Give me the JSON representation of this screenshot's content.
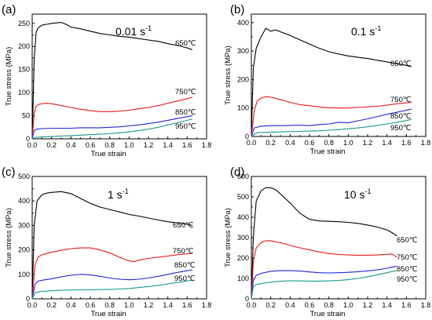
{
  "chart_data": [
    {
      "type": "line",
      "panel_label": "(a)",
      "strain_rate_label": "0.01 s",
      "strain_rate_superscript": "-1",
      "xlabel": "True strain",
      "ylabel": "True stress (MPa)",
      "xlim": [
        0.0,
        1.8
      ],
      "ylim": [
        0,
        270
      ],
      "xticks": [
        "0.0",
        "0.2",
        "0.4",
        "0.6",
        "0.8",
        "1.0",
        "1.2",
        "1.4",
        "1.6",
        "1.8"
      ],
      "yticks": [
        "0",
        "50",
        "100",
        "150",
        "200",
        "250"
      ],
      "yticks_values": [
        0,
        50,
        100,
        150,
        200,
        250
      ],
      "series": [
        {
          "name": "650℃",
          "color": "#000000",
          "x": [
            0,
            0.02,
            0.04,
            0.06,
            0.1,
            0.15,
            0.2,
            0.3,
            0.35,
            0.4,
            0.5,
            0.6,
            0.7,
            0.8,
            0.9,
            1.0,
            1.1,
            1.2,
            1.3,
            1.4,
            1.5,
            1.6,
            1.65
          ],
          "y": [
            0,
            170,
            230,
            240,
            246,
            248,
            250,
            252,
            248,
            242,
            238,
            233,
            228,
            225,
            222,
            220,
            217,
            214,
            211,
            206,
            202,
            197,
            193
          ]
        },
        {
          "name": "750℃",
          "color": "#e8191c",
          "x": [
            0,
            0.02,
            0.04,
            0.06,
            0.1,
            0.15,
            0.2,
            0.3,
            0.4,
            0.5,
            0.6,
            0.7,
            0.8,
            0.9,
            1.0,
            1.1,
            1.2,
            1.3,
            1.4,
            1.5,
            1.6,
            1.65
          ],
          "y": [
            0,
            55,
            70,
            74,
            76,
            77,
            76,
            72,
            68,
            64,
            61,
            59,
            59,
            60,
            62,
            65,
            68,
            72,
            77,
            82,
            87,
            90
          ]
        },
        {
          "name": "850℃",
          "color": "#2323d8",
          "x": [
            0,
            0.02,
            0.05,
            0.1,
            0.2,
            0.3,
            0.4,
            0.5,
            0.6,
            0.7,
            0.8,
            0.9,
            1.0,
            1.1,
            1.2,
            1.3,
            1.4,
            1.5,
            1.6,
            1.65
          ],
          "y": [
            0,
            18,
            21,
            22,
            23,
            23,
            23,
            24,
            24,
            24,
            25,
            26,
            28,
            30,
            33,
            36,
            40,
            44,
            48,
            50
          ]
        },
        {
          "name": "950℃",
          "color": "#1a9a8e",
          "x": [
            0,
            0.03,
            0.1,
            0.2,
            0.3,
            0.4,
            0.5,
            0.6,
            0.7,
            0.8,
            0.9,
            1.0,
            1.1,
            1.2,
            1.3,
            1.4,
            1.5,
            1.6,
            1.65
          ],
          "y": [
            0,
            3,
            4,
            5,
            6,
            7,
            8,
            9,
            10,
            11,
            13,
            15,
            18,
            21,
            25,
            30,
            35,
            40,
            43
          ]
        }
      ]
    },
    {
      "type": "line",
      "panel_label": "(b)",
      "strain_rate_label": "0.1 s",
      "strain_rate_superscript": "-1",
      "xlabel": "True strain",
      "ylabel": "True stress (MPa)",
      "xlim": [
        0.0,
        1.8
      ],
      "ylim": [
        0,
        430
      ],
      "xticks": [
        "0.0",
        "0.2",
        "0.4",
        "0.6",
        "0.8",
        "1.0",
        "1.2",
        "1.4",
        "1.6",
        "1.8"
      ],
      "yticks": [
        "0",
        "100",
        "200",
        "300",
        "400"
      ],
      "yticks_values": [
        0,
        100,
        200,
        300,
        400
      ],
      "series": [
        {
          "name": "650℃",
          "color": "#000000",
          "x": [
            0,
            0.02,
            0.05,
            0.1,
            0.15,
            0.2,
            0.25,
            0.3,
            0.4,
            0.5,
            0.6,
            0.7,
            0.8,
            0.9,
            1.0,
            1.1,
            1.2,
            1.3,
            1.4,
            1.5,
            1.6,
            1.65
          ],
          "y": [
            0,
            240,
            310,
            350,
            380,
            370,
            375,
            368,
            355,
            340,
            325,
            310,
            298,
            290,
            283,
            278,
            274,
            268,
            262,
            256,
            250,
            245
          ]
        },
        {
          "name": "750℃",
          "color": "#e8191c",
          "x": [
            0,
            0.03,
            0.06,
            0.1,
            0.15,
            0.2,
            0.3,
            0.4,
            0.5,
            0.6,
            0.7,
            0.8,
            0.9,
            1.0,
            1.1,
            1.2,
            1.3,
            1.4,
            1.5,
            1.6,
            1.65
          ],
          "y": [
            0,
            90,
            125,
            135,
            140,
            138,
            130,
            120,
            112,
            108,
            104,
            101,
            100,
            100,
            102,
            104,
            106,
            110,
            115,
            118,
            120
          ]
        },
        {
          "name": "850℃",
          "color": "#2323d8",
          "x": [
            0,
            0.03,
            0.1,
            0.2,
            0.3,
            0.4,
            0.5,
            0.6,
            0.7,
            0.8,
            0.9,
            1.0,
            1.1,
            1.2,
            1.3,
            1.4,
            1.5,
            1.6,
            1.65
          ],
          "y": [
            0,
            30,
            36,
            38,
            38,
            39,
            40,
            38,
            42,
            44,
            50,
            48,
            55,
            62,
            70,
            78,
            85,
            92,
            96
          ]
        },
        {
          "name": "950℃",
          "color": "#1a9a8e",
          "x": [
            0,
            0.05,
            0.1,
            0.2,
            0.3,
            0.4,
            0.5,
            0.6,
            0.7,
            0.8,
            0.9,
            1.0,
            1.1,
            1.2,
            1.3,
            1.4,
            1.5,
            1.6,
            1.65
          ],
          "y": [
            0,
            12,
            14,
            15,
            16,
            17,
            18,
            19,
            20,
            22,
            24,
            27,
            30,
            34,
            39,
            44,
            50,
            56,
            60
          ]
        }
      ]
    },
    {
      "type": "line",
      "panel_label": "(c)",
      "strain_rate_label": "1 s",
      "strain_rate_superscript": "-1",
      "xlabel": "True strain",
      "ylabel": "True stress (MPa)",
      "xlim": [
        0.0,
        1.8
      ],
      "ylim": [
        0,
        500
      ],
      "xticks": [
        "0.0",
        "0.2",
        "0.4",
        "0.6",
        "0.8",
        "1.0",
        "1.2",
        "1.4",
        "1.6",
        "1.8"
      ],
      "yticks": [
        "0",
        "100",
        "200",
        "300",
        "400",
        "500"
      ],
      "yticks_values": [
        0,
        100,
        200,
        300,
        400,
        500
      ],
      "series": [
        {
          "name": "650℃",
          "color": "#000000",
          "x": [
            0,
            0.02,
            0.05,
            0.1,
            0.15,
            0.2,
            0.3,
            0.4,
            0.5,
            0.6,
            0.7,
            0.8,
            0.9,
            1.0,
            1.1,
            1.2,
            1.3,
            1.4,
            1.5,
            1.6,
            1.65
          ],
          "y": [
            0,
            300,
            400,
            425,
            432,
            435,
            438,
            430,
            410,
            390,
            375,
            365,
            355,
            345,
            338,
            330,
            322,
            315,
            310,
            305,
            300
          ]
        },
        {
          "name": "750℃",
          "color": "#e8191c",
          "x": [
            0,
            0.03,
            0.06,
            0.1,
            0.2,
            0.3,
            0.4,
            0.5,
            0.6,
            0.7,
            0.8,
            0.9,
            1.0,
            1.05,
            1.1,
            1.2,
            1.3,
            1.4,
            1.5,
            1.6,
            1.65
          ],
          "y": [
            0,
            140,
            170,
            180,
            190,
            198,
            205,
            208,
            208,
            200,
            188,
            170,
            155,
            152,
            158,
            165,
            170,
            175,
            180,
            184,
            186
          ]
        },
        {
          "name": "850℃",
          "color": "#2323d8",
          "x": [
            0,
            0.03,
            0.06,
            0.1,
            0.2,
            0.3,
            0.4,
            0.5,
            0.6,
            0.7,
            0.8,
            0.9,
            1.0,
            1.1,
            1.2,
            1.3,
            1.4,
            1.5,
            1.6,
            1.65
          ],
          "y": [
            0,
            60,
            72,
            76,
            82,
            90,
            96,
            100,
            98,
            92,
            85,
            80,
            78,
            80,
            85,
            92,
            100,
            108,
            115,
            118
          ]
        },
        {
          "name": "950℃",
          "color": "#1a9a8e",
          "x": [
            0,
            0.03,
            0.1,
            0.2,
            0.3,
            0.4,
            0.5,
            0.6,
            0.7,
            0.8,
            0.9,
            1.0,
            1.1,
            1.2,
            1.3,
            1.4,
            1.5,
            1.6,
            1.65
          ],
          "y": [
            0,
            25,
            30,
            33,
            35,
            36,
            37,
            37,
            38,
            38,
            40,
            42,
            46,
            50,
            55,
            61,
            67,
            73,
            76
          ]
        }
      ]
    },
    {
      "type": "line",
      "panel_label": "(d)",
      "strain_rate_label": "10 s",
      "strain_rate_superscript": "-1",
      "xlabel": "True strain",
      "ylabel": "True stress (MPa)",
      "xlim": [
        0.0,
        1.8
      ],
      "ylim": [
        0,
        600
      ],
      "xticks": [
        "0.0",
        "0.2",
        "0.4",
        "0.6",
        "0.8",
        "1.0",
        "1.2",
        "1.4",
        "1.6",
        "1.8"
      ],
      "yticks": [
        "0",
        "100",
        "200",
        "300",
        "400",
        "500",
        "600"
      ],
      "yticks_values": [
        0,
        100,
        200,
        300,
        400,
        500,
        600
      ],
      "series": [
        {
          "name": "650℃",
          "color": "#000000",
          "x": [
            0,
            0.02,
            0.05,
            0.1,
            0.15,
            0.2,
            0.25,
            0.3,
            0.4,
            0.5,
            0.6,
            0.7,
            0.8,
            0.9,
            1.0,
            1.1,
            1.2,
            1.3,
            1.4,
            1.45,
            1.5
          ],
          "y": [
            0,
            300,
            480,
            530,
            545,
            545,
            535,
            515,
            470,
            420,
            390,
            382,
            380,
            378,
            375,
            370,
            362,
            352,
            338,
            325,
            310
          ]
        },
        {
          "name": "750℃",
          "color": "#e8191c",
          "x": [
            0,
            0.02,
            0.05,
            0.1,
            0.15,
            0.2,
            0.3,
            0.4,
            0.5,
            0.6,
            0.7,
            0.8,
            0.9,
            1.0,
            1.1,
            1.2,
            1.3,
            1.4,
            1.45,
            1.5
          ],
          "y": [
            0,
            180,
            250,
            275,
            285,
            285,
            275,
            262,
            250,
            240,
            230,
            222,
            218,
            215,
            214,
            214,
            215,
            218,
            220,
            205
          ]
        },
        {
          "name": "850℃",
          "color": "#2323d8",
          "x": [
            0,
            0.02,
            0.05,
            0.1,
            0.2,
            0.3,
            0.4,
            0.5,
            0.6,
            0.7,
            0.8,
            0.9,
            1.0,
            1.1,
            1.2,
            1.3,
            1.4,
            1.45,
            1.5
          ],
          "y": [
            0,
            90,
            115,
            125,
            135,
            138,
            138,
            136,
            132,
            128,
            127,
            128,
            130,
            133,
            137,
            142,
            150,
            155,
            160
          ]
        },
        {
          "name": "950℃",
          "color": "#1a9a8e",
          "x": [
            0,
            0.02,
            0.05,
            0.1,
            0.2,
            0.3,
            0.4,
            0.5,
            0.6,
            0.7,
            0.8,
            0.9,
            1.0,
            1.1,
            1.2,
            1.3,
            1.4,
            1.45,
            1.5
          ],
          "y": [
            0,
            60,
            70,
            75,
            82,
            86,
            88,
            88,
            87,
            87,
            88,
            90,
            94,
            100,
            108,
            118,
            128,
            134,
            138
          ]
        }
      ]
    }
  ]
}
